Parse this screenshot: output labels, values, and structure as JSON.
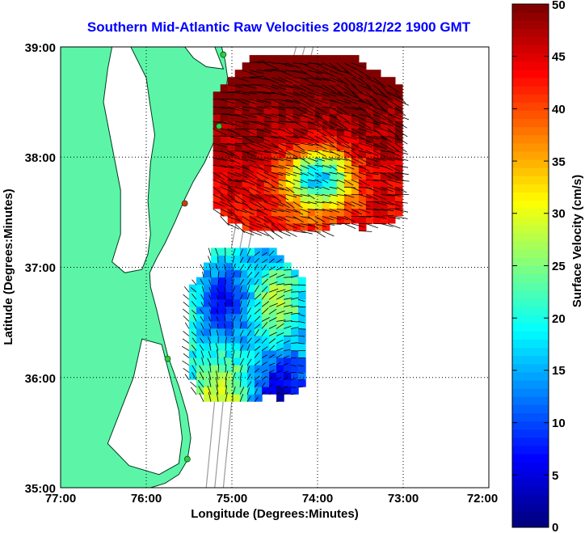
{
  "title": "Southern Mid-Atlantic Raw Velocities 2008/12/22 1900 GMT",
  "colors": {
    "title": "#0000ff",
    "land": "#5cf5a8",
    "land_edge": "#003b1e",
    "ocean": "#ffffff",
    "bathymetry": "#9a9a9a",
    "grid": "#000000",
    "station": "#2ecc40",
    "station_alt": "#e03010"
  },
  "map": {
    "xlabel": "Longitude (Degrees:Minutes)",
    "ylabel": "Latitude (Degrees:Minutes)",
    "lon_range": [
      -77,
      -72
    ],
    "lat_range": [
      35,
      39
    ],
    "x_ticks": [
      "77:00",
      "76:00",
      "75:00",
      "74:00",
      "73:00",
      "72:00"
    ],
    "y_ticks": [
      "35:00",
      "36:00",
      "37:00",
      "38:00",
      "39:00"
    ],
    "grid": "dotted"
  },
  "colorbar": {
    "label": "Surface Velocity (cm/s)",
    "min": 0,
    "max": 50,
    "ticks": [
      "0",
      "5",
      "10",
      "15",
      "20",
      "25",
      "30",
      "35",
      "40",
      "45",
      "50"
    ],
    "colormap": "jet"
  },
  "stations": [
    {
      "lon": -75.1,
      "lat": 38.93,
      "color": "green"
    },
    {
      "lon": -75.15,
      "lat": 38.28,
      "color": "green"
    },
    {
      "lon": -75.55,
      "lat": 37.58,
      "color": "red"
    },
    {
      "lon": -75.75,
      "lat": 36.17,
      "color": "green"
    },
    {
      "lon": -75.52,
      "lat": 35.26,
      "color": "green"
    }
  ],
  "velocity_regions": [
    {
      "name": "north",
      "lon_range": [
        -75.22,
        -73.05
      ],
      "lat_range": [
        37.33,
        38.92
      ],
      "dominant_cm_s": 48
    },
    {
      "name": "south",
      "lon_range": [
        -75.5,
        -74.2
      ],
      "lat_range": [
        35.78,
        37.15
      ],
      "dominant_cm_s": 20
    }
  ]
}
